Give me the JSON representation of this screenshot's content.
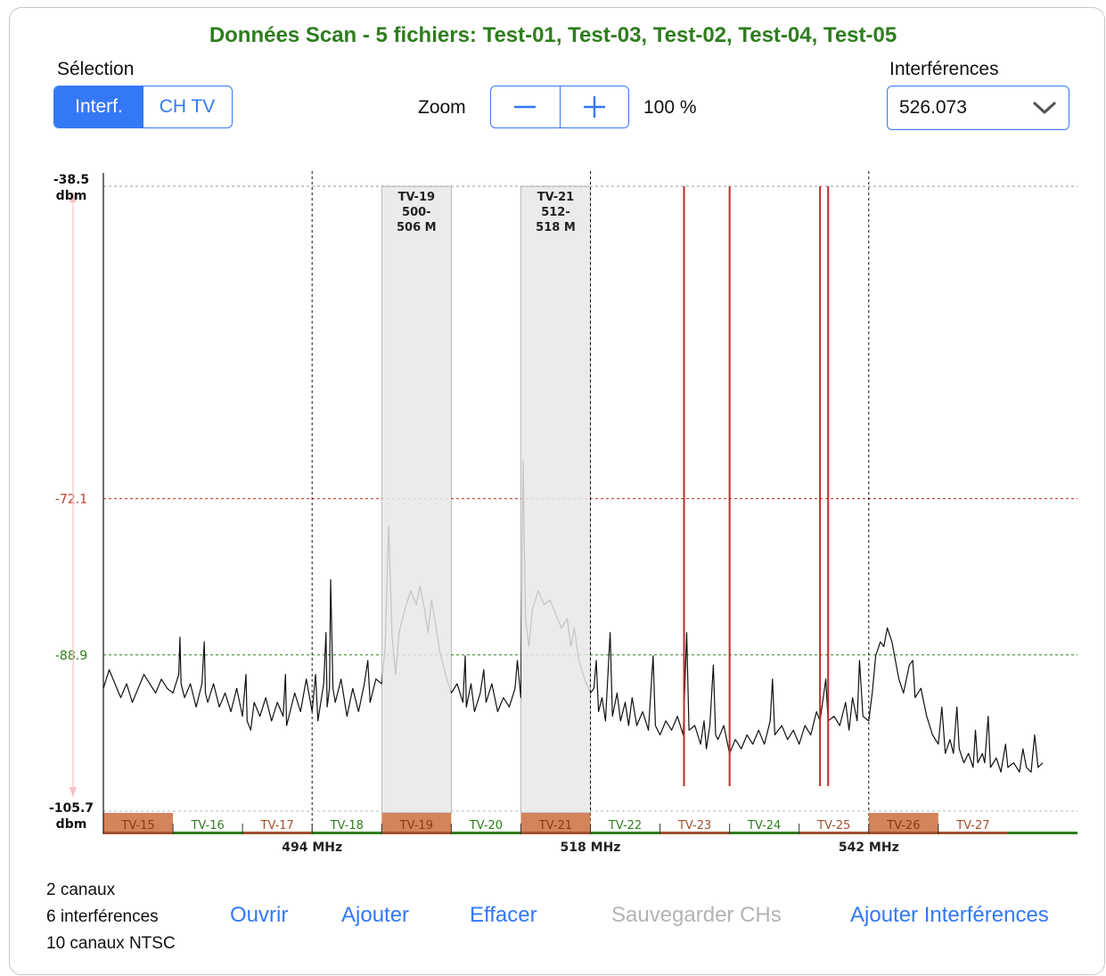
{
  "title": "Données Scan - 5 fichiers: Test-01, Test-03, Test-02, Test-04, Test-05",
  "selection": {
    "label": "Sélection",
    "options": [
      "Interf.",
      "CH TV"
    ],
    "selected": "Interf."
  },
  "zoom": {
    "label": "Zoom",
    "minus_icon": "minus-icon",
    "plus_icon": "plus-icon",
    "value": "100 %"
  },
  "interferences_picker": {
    "label": "Interférences",
    "value": "526.073",
    "icon": "chevron-down-icon"
  },
  "chart_data": {
    "type": "line",
    "y_top_label": [
      "-38.5",
      "dbm"
    ],
    "y_bottom_label": [
      "-105.7",
      "dbm"
    ],
    "ylim": [
      -105.7,
      -38.5
    ],
    "xlim": [
      476,
      560
    ],
    "reference_lines": [
      {
        "value": -72.1,
        "label": "-72.1",
        "color": "#c0392b"
      },
      {
        "value": -88.9,
        "label": "-88.9",
        "color": "#2e7d1e"
      }
    ],
    "x_markers": [
      {
        "x": 494,
        "label": "494 MHz"
      },
      {
        "x": 518,
        "label": "518 MHz"
      },
      {
        "x": 542,
        "label": "542 MHz"
      }
    ],
    "channels": [
      {
        "name": "TV-15",
        "start": 476,
        "end": 482,
        "color": "#d4845a",
        "filled": true
      },
      {
        "name": "TV-16",
        "start": 482,
        "end": 488,
        "color": "#2e7d1e",
        "filled": false
      },
      {
        "name": "TV-17",
        "start": 488,
        "end": 494,
        "color": "#a0522d",
        "filled": false
      },
      {
        "name": "TV-18",
        "start": 494,
        "end": 500,
        "color": "#2e7d1e",
        "filled": false
      },
      {
        "name": "TV-19",
        "start": 500,
        "end": 506,
        "color": "#d4845a",
        "filled": true
      },
      {
        "name": "TV-20",
        "start": 506,
        "end": 512,
        "color": "#2e7d1e",
        "filled": false
      },
      {
        "name": "TV-21",
        "start": 512,
        "end": 518,
        "color": "#d4845a",
        "filled": true
      },
      {
        "name": "TV-22",
        "start": 518,
        "end": 524,
        "color": "#2e7d1e",
        "filled": false
      },
      {
        "name": "TV-23",
        "start": 524,
        "end": 530,
        "color": "#a0522d",
        "filled": false
      },
      {
        "name": "TV-24",
        "start": 530,
        "end": 536,
        "color": "#2e7d1e",
        "filled": false
      },
      {
        "name": "TV-25",
        "start": 536,
        "end": 542,
        "color": "#a0522d",
        "filled": false
      },
      {
        "name": "TV-26",
        "start": 542,
        "end": 548,
        "color": "#d4845a",
        "filled": true
      },
      {
        "name": "TV-27",
        "start": 548,
        "end": 554,
        "color": "#a0522d",
        "filled": false
      }
    ],
    "selected_channels": [
      {
        "start": 500,
        "end": 506,
        "label": [
          "TV-19",
          "500-",
          "506 M"
        ]
      },
      {
        "start": 512,
        "end": 518,
        "label": [
          "TV-21",
          "512-",
          "518 M"
        ]
      }
    ],
    "interference_lines": [
      526.073,
      530.0,
      537.8,
      538.5
    ],
    "spectrum": [
      [
        476.0,
        -92.5
      ],
      [
        476.5,
        -90.5
      ],
      [
        477.0,
        -92.0
      ],
      [
        477.5,
        -93.5
      ],
      [
        478.0,
        -92.0
      ],
      [
        478.5,
        -94.0
      ],
      [
        479.0,
        -92.5
      ],
      [
        479.5,
        -91.0
      ],
      [
        480.0,
        -92.0
      ],
      [
        480.5,
        -93.0
      ],
      [
        481.0,
        -91.5
      ],
      [
        481.5,
        -92.5
      ],
      [
        482.0,
        -93.0
      ],
      [
        482.5,
        -91.0
      ],
      [
        482.6,
        -87.0
      ],
      [
        482.7,
        -92.0
      ],
      [
        483.0,
        -93.5
      ],
      [
        483.5,
        -92.0
      ],
      [
        484.0,
        -94.5
      ],
      [
        484.5,
        -92.0
      ],
      [
        484.7,
        -87.5
      ],
      [
        484.8,
        -93.0
      ],
      [
        485.0,
        -94.0
      ],
      [
        485.5,
        -92.0
      ],
      [
        486.0,
        -94.5
      ],
      [
        486.5,
        -93.0
      ],
      [
        487.0,
        -95.0
      ],
      [
        487.5,
        -92.5
      ],
      [
        488.0,
        -95.5
      ],
      [
        488.3,
        -91.0
      ],
      [
        488.4,
        -96.0
      ],
      [
        488.7,
        -97.0
      ],
      [
        489.0,
        -94.0
      ],
      [
        489.5,
        -95.5
      ],
      [
        490.0,
        -93.5
      ],
      [
        490.5,
        -96.0
      ],
      [
        491.0,
        -94.0
      ],
      [
        491.5,
        -95.5
      ],
      [
        491.7,
        -91.0
      ],
      [
        491.8,
        -96.5
      ],
      [
        492.5,
        -93.0
      ],
      [
        493.0,
        -95.0
      ],
      [
        493.5,
        -91.5
      ],
      [
        494.0,
        -95.0
      ],
      [
        494.3,
        -91.0
      ],
      [
        494.5,
        -96.0
      ],
      [
        495.0,
        -92.0
      ],
      [
        495.2,
        -86.5
      ],
      [
        495.3,
        -94.5
      ],
      [
        495.5,
        -92.5
      ],
      [
        495.6,
        -80.8
      ],
      [
        495.8,
        -92.5
      ],
      [
        496.0,
        -94.0
      ],
      [
        496.5,
        -91.5
      ],
      [
        497.0,
        -95.5
      ],
      [
        497.5,
        -92.5
      ],
      [
        498.0,
        -95.0
      ],
      [
        498.5,
        -92.0
      ],
      [
        498.8,
        -89.5
      ],
      [
        499.0,
        -94.0
      ],
      [
        499.5,
        -91.5
      ],
      [
        500.0,
        -92.0
      ],
      [
        500.3,
        -88.0
      ],
      [
        500.6,
        -75.0
      ],
      [
        500.9,
        -87.0
      ],
      [
        501.2,
        -91.0
      ],
      [
        501.5,
        -86.5
      ],
      [
        502.0,
        -84.0
      ],
      [
        502.5,
        -82.0
      ],
      [
        503.0,
        -83.5
      ],
      [
        503.3,
        -81.5
      ],
      [
        503.7,
        -84.0
      ],
      [
        504.0,
        -86.5
      ],
      [
        504.3,
        -83.0
      ],
      [
        504.7,
        -86.0
      ],
      [
        505.0,
        -88.5
      ],
      [
        505.5,
        -91.0
      ],
      [
        506.0,
        -93.0
      ],
      [
        506.5,
        -92.0
      ],
      [
        507.0,
        -94.0
      ],
      [
        507.2,
        -89.0
      ],
      [
        507.3,
        -94.5
      ],
      [
        507.7,
        -92.0
      ],
      [
        508.0,
        -95.0
      ],
      [
        508.5,
        -93.0
      ],
      [
        508.8,
        -90.5
      ],
      [
        509.0,
        -94.0
      ],
      [
        509.5,
        -92.0
      ],
      [
        510.0,
        -95.0
      ],
      [
        510.5,
        -93.5
      ],
      [
        511.0,
        -94.5
      ],
      [
        511.5,
        -92.5
      ],
      [
        511.7,
        -89.5
      ],
      [
        512.0,
        -93.5
      ],
      [
        512.2,
        -68.0
      ],
      [
        512.4,
        -85.0
      ],
      [
        512.7,
        -88.0
      ],
      [
        513.0,
        -84.0
      ],
      [
        513.5,
        -82.0
      ],
      [
        514.0,
        -83.5
      ],
      [
        514.5,
        -83.0
      ],
      [
        515.0,
        -84.5
      ],
      [
        515.5,
        -86.0
      ],
      [
        516.0,
        -85.0
      ],
      [
        516.3,
        -88.0
      ],
      [
        516.6,
        -86.0
      ],
      [
        517.0,
        -89.5
      ],
      [
        517.5,
        -91.5
      ],
      [
        518.0,
        -93.0
      ],
      [
        518.3,
        -92.5
      ],
      [
        518.5,
        -89.5
      ],
      [
        518.7,
        -95.0
      ],
      [
        519.0,
        -93.5
      ],
      [
        519.3,
        -96.0
      ],
      [
        519.7,
        -86.5
      ],
      [
        519.9,
        -95.5
      ],
      [
        520.3,
        -93.0
      ],
      [
        520.6,
        -96.0
      ],
      [
        521.0,
        -94.0
      ],
      [
        521.3,
        -96.5
      ],
      [
        521.6,
        -93.5
      ],
      [
        522.0,
        -96.5
      ],
      [
        522.5,
        -95.0
      ],
      [
        523.0,
        -97.0
      ],
      [
        523.4,
        -89.0
      ],
      [
        523.6,
        -96.5
      ],
      [
        524.0,
        -97.5
      ],
      [
        524.5,
        -96.0
      ],
      [
        525.0,
        -97.0
      ],
      [
        525.5,
        -95.5
      ],
      [
        526.0,
        -97.5
      ],
      [
        526.3,
        -86.5
      ],
      [
        526.5,
        -97.0
      ],
      [
        527.0,
        -96.5
      ],
      [
        527.5,
        -98.5
      ],
      [
        527.8,
        -96.0
      ],
      [
        528.0,
        -99.0
      ],
      [
        528.3,
        -96.5
      ],
      [
        528.6,
        -90.0
      ],
      [
        528.8,
        -97.5
      ],
      [
        529.0,
        -98.0
      ],
      [
        529.5,
        -96.5
      ],
      [
        530.0,
        -99.5
      ],
      [
        530.5,
        -98.0
      ],
      [
        531.0,
        -99.0
      ],
      [
        531.5,
        -97.5
      ],
      [
        532.0,
        -98.5
      ],
      [
        532.5,
        -97.0
      ],
      [
        533.0,
        -98.5
      ],
      [
        533.5,
        -96.0
      ],
      [
        533.7,
        -91.5
      ],
      [
        533.9,
        -97.5
      ],
      [
        534.5,
        -96.5
      ],
      [
        535.0,
        -98.0
      ],
      [
        535.5,
        -97.0
      ],
      [
        536.0,
        -98.5
      ],
      [
        536.5,
        -96.5
      ],
      [
        537.0,
        -97.5
      ],
      [
        537.5,
        -95.0
      ],
      [
        537.8,
        -96.0
      ],
      [
        538.3,
        -91.5
      ],
      [
        538.5,
        -96.0
      ],
      [
        539.0,
        -95.5
      ],
      [
        539.5,
        -96.5
      ],
      [
        540.0,
        -94.0
      ],
      [
        540.3,
        -97.0
      ],
      [
        540.6,
        -93.5
      ],
      [
        541.0,
        -96.0
      ],
      [
        541.2,
        -89.5
      ],
      [
        541.5,
        -95.5
      ],
      [
        542.0,
        -96.0
      ],
      [
        542.3,
        -93.0
      ],
      [
        542.6,
        -89.0
      ],
      [
        543.0,
        -87.5
      ],
      [
        543.3,
        -88.0
      ],
      [
        543.6,
        -86.0
      ],
      [
        544.0,
        -87.5
      ],
      [
        544.3,
        -89.5
      ],
      [
        544.6,
        -91.5
      ],
      [
        545.0,
        -93.0
      ],
      [
        545.5,
        -90.0
      ],
      [
        545.8,
        -89.5
      ],
      [
        546.0,
        -93.5
      ],
      [
        546.5,
        -92.5
      ],
      [
        547.0,
        -95.5
      ],
      [
        547.5,
        -97.5
      ],
      [
        548.0,
        -98.5
      ],
      [
        548.3,
        -94.5
      ],
      [
        548.6,
        -99.5
      ],
      [
        549.0,
        -98.0
      ],
      [
        549.3,
        -99.5
      ],
      [
        549.6,
        -94.5
      ],
      [
        549.8,
        -99.0
      ],
      [
        550.2,
        -100.5
      ],
      [
        550.6,
        -99.5
      ],
      [
        551.0,
        -101.0
      ],
      [
        551.2,
        -97.0
      ],
      [
        551.4,
        -100.5
      ],
      [
        551.8,
        -99.5
      ],
      [
        552.0,
        -100.5
      ],
      [
        552.3,
        -95.5
      ],
      [
        552.5,
        -101.0
      ],
      [
        553.0,
        -100.0
      ],
      [
        553.4,
        -101.5
      ],
      [
        553.8,
        -98.5
      ],
      [
        554.0,
        -101.0
      ],
      [
        554.5,
        -100.5
      ],
      [
        555.0,
        -101.5
      ],
      [
        555.3,
        -99.0
      ],
      [
        555.6,
        -101.0
      ],
      [
        556.0,
        -101.5
      ],
      [
        556.3,
        -97.5
      ],
      [
        556.6,
        -101.0
      ],
      [
        557.0,
        -100.5
      ]
    ]
  },
  "stats": [
    "2 canaux",
    "6 interférences",
    "10 canaux NTSC"
  ],
  "actions": {
    "open": "Ouvrir",
    "add": "Ajouter",
    "clear": "Effacer",
    "save_channels": "Sauvegarder CHs",
    "add_interferences": "Ajouter Interférences"
  }
}
